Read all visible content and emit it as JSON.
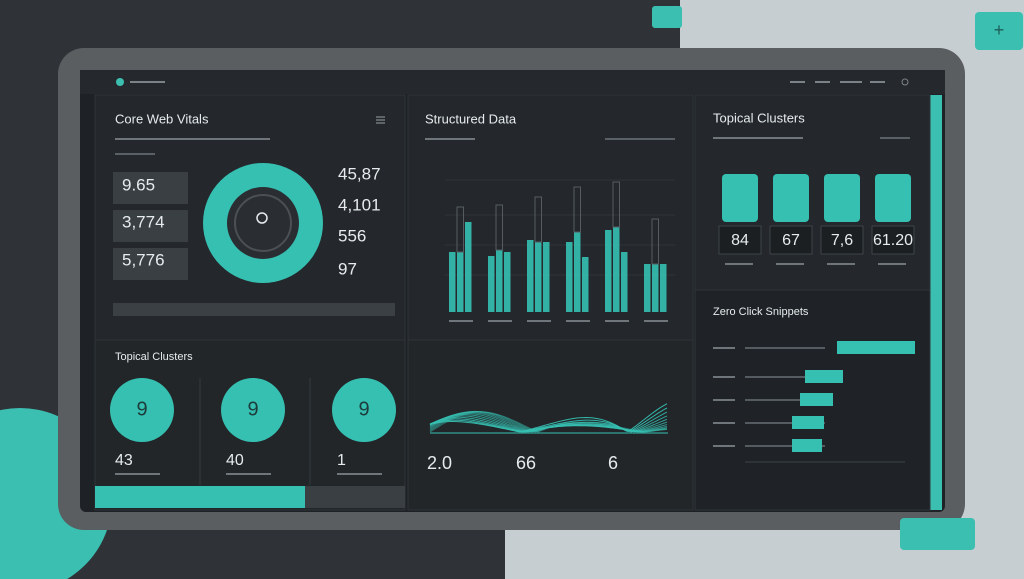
{
  "core_web_vitals": {
    "title": "Core Web Vitals",
    "metrics": [
      "9.65",
      "3,774",
      "5,776"
    ],
    "side_values": [
      "45,87",
      "4,101",
      "556",
      "97"
    ]
  },
  "structured_data": {
    "title": "Structured Data"
  },
  "topical_clusters": {
    "title": "Topical Clusters",
    "values": [
      "84",
      "67",
      "7,6",
      "61.20"
    ]
  },
  "zero_click_snippets": {
    "title": "Zero Click Snippets"
  },
  "topical_clusters_bottom": {
    "title": "Topical Clusters",
    "circle_labels": [
      "9",
      "9",
      "9"
    ],
    "values": [
      "43",
      "40",
      "1"
    ]
  },
  "wave_panel": {
    "values": [
      "2.0",
      "66",
      "6"
    ]
  }
}
